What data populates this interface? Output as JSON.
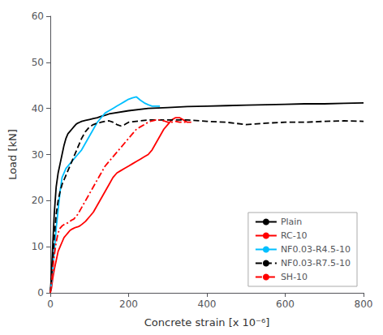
{
  "chart_data": {
    "type": "line",
    "xlabel": "Concrete strain [x 10⁻⁶]",
    "ylabel": "Load [kN]",
    "xlim": [
      0,
      800
    ],
    "ylim": [
      0,
      60
    ],
    "xticks": [
      0,
      200,
      400,
      600,
      800
    ],
    "yticks": [
      0,
      10,
      20,
      30,
      40,
      50,
      60
    ],
    "grid": false,
    "legend": "lower right",
    "series": [
      {
        "name": "Plain",
        "color": "#000000",
        "line_style": "solid",
        "x": [
          0,
          3,
          6,
          10,
          15,
          20,
          25,
          30,
          35,
          40,
          45,
          50,
          55,
          60,
          65,
          70,
          75,
          80,
          90,
          100,
          110,
          120,
          130,
          140,
          150,
          200,
          250,
          300,
          350,
          400,
          450,
          500,
          550,
          600,
          650,
          700,
          750,
          800
        ],
        "values": [
          0,
          4,
          10,
          17,
          23,
          26,
          28,
          30,
          32,
          33.5,
          34.5,
          35,
          35.5,
          36,
          36.5,
          36.8,
          37,
          37.2,
          37.4,
          37.6,
          37.8,
          38.0,
          38.3,
          38.5,
          38.8,
          39.5,
          40.0,
          40.2,
          40.4,
          40.5,
          40.6,
          40.7,
          40.8,
          40.9,
          41.0,
          41.0,
          41.1,
          41.2
        ]
      },
      {
        "name": "RC-10",
        "color": "#ff0000",
        "line_style": "solid",
        "x": [
          0,
          3,
          6,
          10,
          15,
          20,
          25,
          30,
          35,
          40,
          45,
          50,
          55,
          60,
          65,
          70,
          75,
          80,
          90,
          100,
          110,
          120,
          130,
          140,
          150,
          160,
          170,
          180,
          190,
          200,
          210,
          220,
          230,
          240,
          250,
          260,
          270,
          280,
          290,
          300,
          310,
          320,
          330,
          340,
          350,
          360
        ],
        "values": [
          0,
          1,
          3,
          5,
          7,
          9,
          10,
          11,
          12,
          12.5,
          13,
          13.5,
          13.8,
          14,
          14.2,
          14.3,
          14.5,
          14.8,
          15.5,
          16.5,
          17.5,
          19,
          20.5,
          22,
          23.5,
          25,
          26,
          26.5,
          27,
          27.5,
          28,
          28.5,
          29,
          29.5,
          30,
          31,
          32.5,
          34,
          35.5,
          36.5,
          37.5,
          38,
          38,
          37.5,
          37,
          37
        ]
      },
      {
        "name": "NF0.03-R4.5-10",
        "color": "#00bfff",
        "line_style": "solid",
        "x": [
          0,
          3,
          6,
          10,
          15,
          20,
          25,
          30,
          40,
          50,
          60,
          70,
          80,
          90,
          100,
          110,
          120,
          130,
          140,
          150,
          160,
          170,
          180,
          190,
          200,
          210,
          220,
          230,
          240,
          250,
          260,
          270,
          280
        ],
        "values": [
          0,
          2,
          5,
          9,
          14,
          18,
          22,
          25,
          27,
          28,
          29,
          30,
          31,
          32.5,
          34,
          35.5,
          37,
          38,
          39,
          39.5,
          40,
          40.5,
          41,
          41.5,
          42,
          42.3,
          42.5,
          41.8,
          41.2,
          40.8,
          40.5,
          40.5,
          40.5
        ]
      },
      {
        "name": "NF0.03-R7.5-10",
        "color": "#000000",
        "line_style": "dashed",
        "x": [
          0,
          3,
          6,
          10,
          15,
          20,
          25,
          30,
          35,
          40,
          45,
          50,
          55,
          60,
          65,
          70,
          75,
          80,
          90,
          100,
          110,
          120,
          130,
          140,
          150,
          160,
          170,
          180,
          190,
          200,
          250,
          300,
          350,
          400,
          450,
          500,
          550,
          600,
          650,
          700,
          750,
          800
        ],
        "values": [
          0,
          3,
          7,
          12,
          17,
          20,
          22,
          23.5,
          24.5,
          25.5,
          26.5,
          27.5,
          28.5,
          29.5,
          30.5,
          31.5,
          32.5,
          33.5,
          35,
          36,
          36.5,
          36.8,
          37,
          37.2,
          37.3,
          37,
          36.5,
          36.2,
          36.5,
          37,
          37.5,
          37.5,
          37.5,
          37.2,
          37,
          36.5,
          36.8,
          37,
          37,
          37.2,
          37.3,
          37.2
        ]
      },
      {
        "name": "SH-10",
        "color": "#ff0000",
        "line_style": "dashdot",
        "x": [
          0,
          3,
          6,
          10,
          15,
          20,
          25,
          30,
          35,
          40,
          45,
          50,
          55,
          60,
          70,
          80,
          90,
          100,
          110,
          120,
          130,
          140,
          150,
          160,
          170,
          180,
          190,
          200,
          210,
          220,
          230,
          240,
          250,
          260,
          270,
          280,
          290,
          300,
          310,
          320,
          330,
          340,
          350
        ],
        "values": [
          0,
          2,
          5,
          8,
          11,
          13,
          14,
          14.5,
          14.8,
          15,
          15.2,
          15.5,
          15.8,
          16,
          17,
          18.5,
          20,
          21.5,
          23,
          24.5,
          26,
          27.5,
          28.5,
          29.5,
          30.5,
          31.5,
          32.5,
          33.5,
          34.5,
          35.5,
          36,
          36.5,
          37,
          37.3,
          37.5,
          37.5,
          37.3,
          37,
          37,
          37.2,
          37,
          37,
          37
        ]
      }
    ]
  }
}
